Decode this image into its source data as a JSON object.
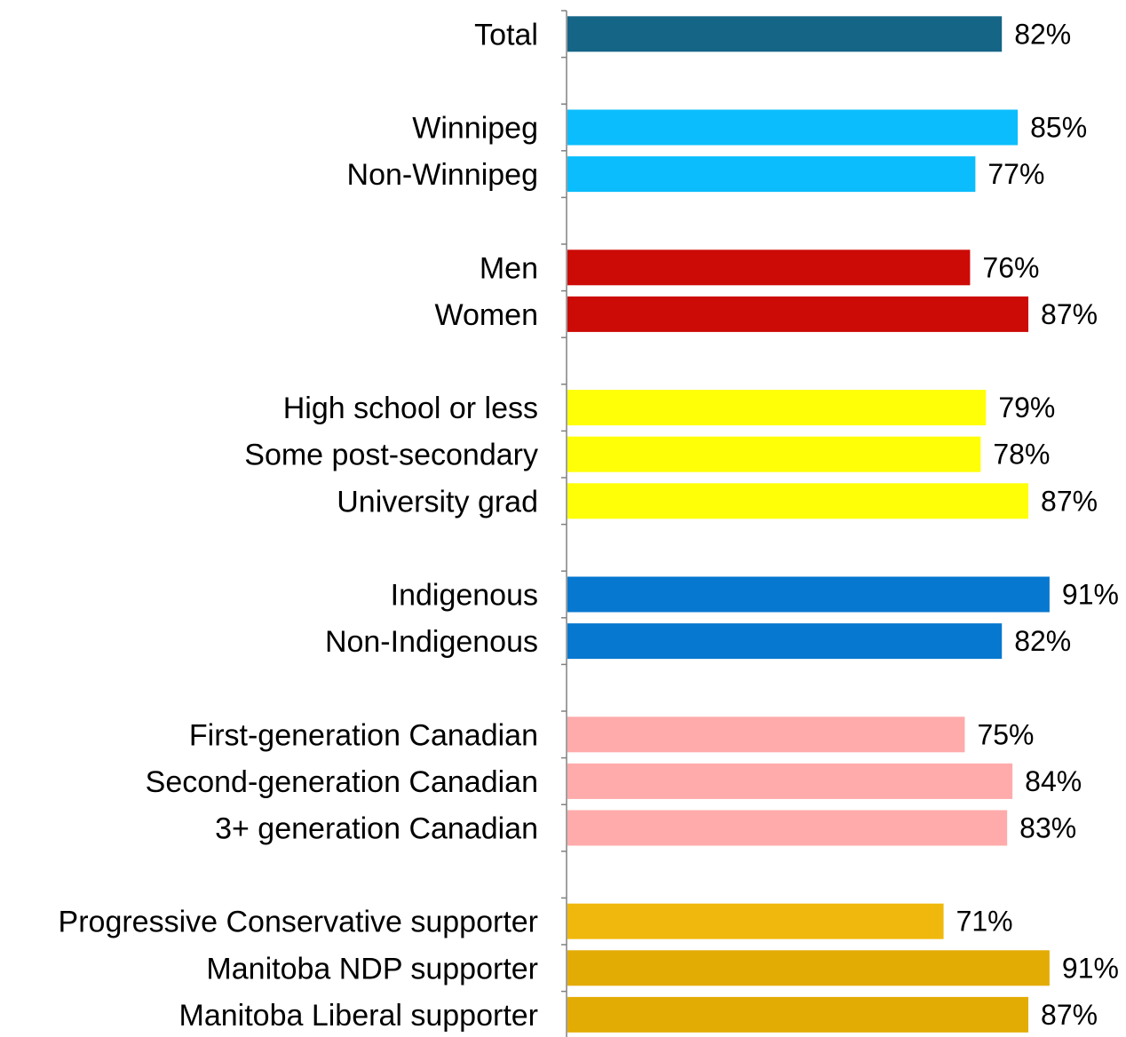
{
  "chart_data": {
    "type": "bar",
    "orientation": "horizontal",
    "categories": [
      "Total",
      "",
      "Winnipeg",
      "Non-Winnipeg",
      "",
      "Men",
      "Women",
      "",
      "High school or less",
      "Some post-secondary",
      "University grad",
      "",
      "Indigenous",
      "Non-Indigenous",
      "",
      "First-generation Canadian",
      "Second-generation Canadian",
      "3+ generation Canadian",
      "",
      "Progressive Conservative supporter",
      "Manitoba NDP supporter",
      "Manitoba Liberal supporter"
    ],
    "values": [
      82,
      null,
      85,
      77,
      null,
      76,
      87,
      null,
      79,
      78,
      87,
      null,
      91,
      82,
      null,
      75,
      84,
      83,
      null,
      71,
      91,
      87
    ],
    "data_labels": [
      "82%",
      "",
      "85%",
      "77%",
      "",
      "76%",
      "87%",
      "",
      "79%",
      "78%",
      "87%",
      "",
      "91%",
      "82%",
      "",
      "75%",
      "84%",
      "83%",
      "",
      "71%",
      "91%",
      "87%"
    ],
    "bar_colors": [
      "#156587",
      null,
      "#0bbdfc",
      "#0bbdfc",
      null,
      "#cc0a06",
      "#cc0a06",
      null,
      "#ffff08",
      "#ffff08",
      "#ffff08",
      null,
      "#0778cf",
      "#0778cf",
      null,
      "#ffabab",
      "#ffabab",
      "#ffabab",
      null,
      "#f0b80d",
      "#e3ac05",
      "#e3ac05"
    ],
    "xlim": [
      0,
      100
    ],
    "grid": false,
    "legend": "none",
    "title": "",
    "xlabel": "",
    "ylabel": ""
  }
}
